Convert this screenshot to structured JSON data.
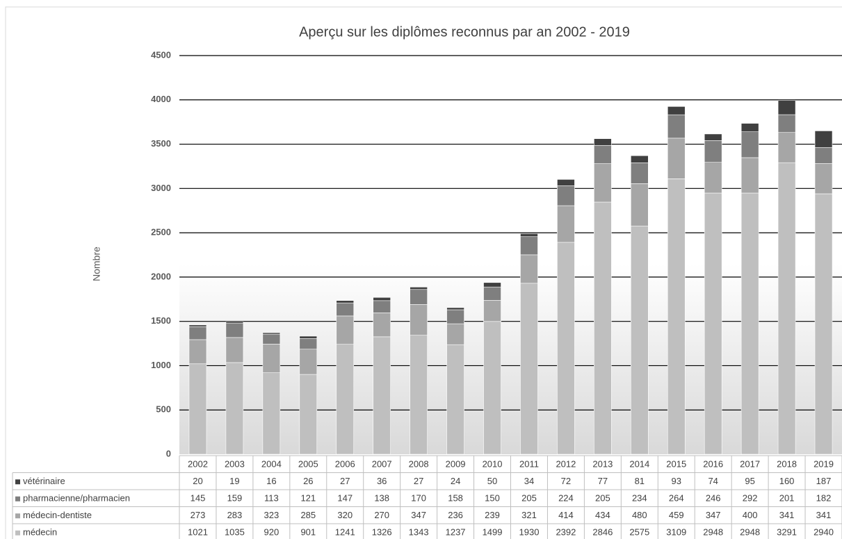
{
  "chart_data": {
    "type": "stacked-bar",
    "title": "Aperçu sur les diplômes reconnus par an 2002 - 2019",
    "y_label": "Nombre",
    "categories": [
      "2002",
      "2003",
      "2004",
      "2005",
      "2006",
      "2007",
      "2008",
      "2009",
      "2010",
      "2011",
      "2012",
      "2013",
      "2014",
      "2015",
      "2016",
      "2017",
      "2018",
      "2019"
    ],
    "series": [
      {
        "name": "médecin",
        "color": "#bfbfbf",
        "values": [
          1021,
          1035,
          920,
          901,
          1241,
          1326,
          1343,
          1237,
          1499,
          1930,
          2392,
          2846,
          2575,
          3109,
          2948,
          2948,
          3291,
          2940
        ]
      },
      {
        "name": "médecin-dentiste",
        "color": "#a6a6a6",
        "values": [
          273,
          283,
          323,
          285,
          320,
          270,
          347,
          236,
          239,
          321,
          414,
          434,
          480,
          459,
          347,
          400,
          341,
          341
        ]
      },
      {
        "name": "pharmacienne/pharmacien",
        "color": "#7f7f7f",
        "values": [
          145,
          159,
          113,
          121,
          147,
          138,
          170,
          158,
          150,
          205,
          224,
          205,
          234,
          264,
          246,
          292,
          201,
          182
        ]
      },
      {
        "name": "vétérinaire",
        "color": "#404040",
        "values": [
          20,
          19,
          16,
          26,
          27,
          36,
          27,
          24,
          50,
          34,
          72,
          77,
          81,
          93,
          74,
          95,
          160,
          187
        ]
      }
    ],
    "ylim": [
      0,
      4500
    ],
    "yticks": [
      0,
      500,
      1000,
      1500,
      2000,
      2500,
      3000,
      3500,
      4000,
      4500
    ],
    "grid": true,
    "data_table": true
  }
}
